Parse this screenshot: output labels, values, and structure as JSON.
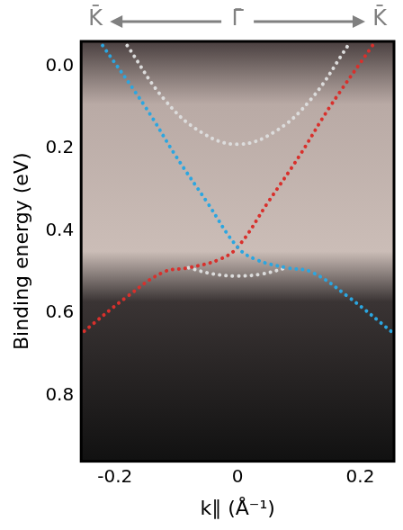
{
  "chart_data": {
    "type": "line",
    "x_label": "k∥ (Å⁻¹)",
    "y_label": "Binding energy (eV)",
    "top_labels": [
      "K̄",
      "Γ̄",
      "K̄"
    ],
    "xlim": [
      -0.255,
      0.255
    ],
    "ylim": [
      0.96,
      -0.06
    ],
    "xticks": [
      -0.2,
      0,
      0.2
    ],
    "yticks": [
      {
        "value": 0,
        "label": "0.0"
      },
      {
        "value": 0.2,
        "label": "0.2"
      },
      {
        "value": 0.4,
        "label": "0.4"
      },
      {
        "value": 0.6,
        "label": "0.6"
      },
      {
        "value": 0.8,
        "label": "0.8"
      }
    ],
    "grid": false,
    "series": [
      {
        "color": "#2ba6e0",
        "line_style": "dotted",
        "x": [
          -0.22,
          -0.15,
          -0.1,
          -0.05,
          0,
          0.03,
          0.08,
          0.12,
          0.18,
          0.255
        ],
        "values": [
          -0.05,
          0.1,
          0.22,
          0.33,
          0.44,
          0.47,
          0.49,
          0.5,
          0.56,
          0.65
        ]
      },
      {
        "color": "#d8302c",
        "line_style": "dotted",
        "x": [
          0.22,
          0.15,
          0.1,
          0.05,
          0,
          -0.03,
          -0.08,
          -0.12,
          -0.18,
          -0.255
        ],
        "values": [
          -0.05,
          0.1,
          0.22,
          0.33,
          0.44,
          0.47,
          0.49,
          0.5,
          0.56,
          0.65
        ]
      },
      {
        "color": "#dcdcdc",
        "line_style": "dotted",
        "x": [
          -0.18,
          -0.12,
          -0.06,
          0,
          0.06,
          0.12,
          0.18
        ],
        "values": [
          -0.05,
          0.08,
          0.16,
          0.19,
          0.16,
          0.08,
          -0.05
        ]
      },
      {
        "color": "#dcdcdc",
        "line_style": "dotted",
        "x": [
          -0.08,
          -0.04,
          0,
          0.04,
          0.08
        ],
        "values": [
          0.49,
          0.505,
          0.51,
          0.505,
          0.49
        ]
      }
    ]
  }
}
